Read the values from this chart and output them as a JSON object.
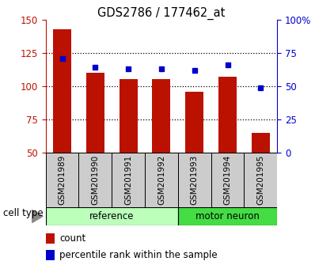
{
  "title": "GDS2786 / 177462_at",
  "categories": [
    "GSM201989",
    "GSM201990",
    "GSM201991",
    "GSM201992",
    "GSM201993",
    "GSM201994",
    "GSM201995"
  ],
  "bar_values": [
    143,
    110,
    105,
    105,
    96,
    107,
    65
  ],
  "percentile_values": [
    71,
    64,
    63,
    63,
    62,
    66,
    49
  ],
  "bar_color": "#bb1100",
  "percentile_color": "#0000cc",
  "ylim_left": [
    50,
    150
  ],
  "ylim_right": [
    0,
    100
  ],
  "yticks_left": [
    50,
    75,
    100,
    125,
    150
  ],
  "ytick_labels_left": [
    "50",
    "75",
    "100",
    "125",
    "150"
  ],
  "ytick_labels_right": [
    "0",
    "25",
    "50",
    "75",
    "100%"
  ],
  "yticks_right": [
    0,
    25,
    50,
    75,
    100
  ],
  "grid_lines": [
    75,
    100,
    125
  ],
  "n_reference": 4,
  "n_motor": 3,
  "ref_color": "#bbffbb",
  "motor_color": "#44dd44",
  "tick_bg_color": "#cccccc",
  "cell_type_label": "cell type",
  "ref_label": "reference",
  "motor_label": "motor neuron",
  "legend_count": "count",
  "legend_percentile": "percentile rank within the sample",
  "bar_width": 0.55
}
